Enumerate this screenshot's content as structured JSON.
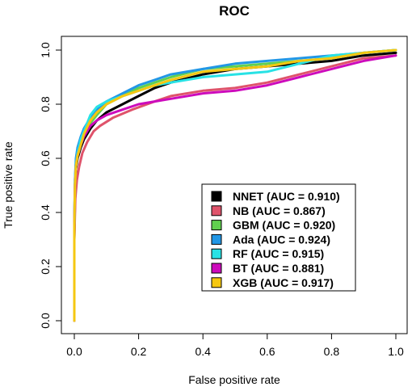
{
  "chart_data": {
    "type": "line",
    "title": "ROC",
    "xlabel": "False positive rate",
    "ylabel": "True positive rate",
    "xlim": [
      0.0,
      1.0
    ],
    "ylim": [
      0.0,
      1.0
    ],
    "xticks": [
      "0.0",
      "0.2",
      "0.4",
      "0.6",
      "0.8",
      "1.0"
    ],
    "yticks": [
      "0.0",
      "0.2",
      "0.4",
      "0.6",
      "0.8",
      "1.0"
    ],
    "grid": false,
    "legend_position": "bottom-right",
    "series": [
      {
        "name": "NNET (AUC = 0.910)",
        "color": "#000000",
        "points": [
          [
            0,
            0
          ],
          [
            0,
            0.3
          ],
          [
            0.002,
            0.45
          ],
          [
            0.005,
            0.56
          ],
          [
            0.01,
            0.6
          ],
          [
            0.02,
            0.64
          ],
          [
            0.03,
            0.67
          ],
          [
            0.05,
            0.71
          ],
          [
            0.07,
            0.74
          ],
          [
            0.1,
            0.77
          ],
          [
            0.15,
            0.8
          ],
          [
            0.2,
            0.83
          ],
          [
            0.25,
            0.86
          ],
          [
            0.3,
            0.88
          ],
          [
            0.4,
            0.91
          ],
          [
            0.5,
            0.93
          ],
          [
            0.6,
            0.94
          ],
          [
            0.7,
            0.95
          ],
          [
            0.8,
            0.96
          ],
          [
            0.9,
            0.98
          ],
          [
            1,
            0.99
          ]
        ]
      },
      {
        "name": "NB (AUC = 0.867)",
        "color": "#df536b",
        "points": [
          [
            0,
            0
          ],
          [
            0,
            0.3
          ],
          [
            0.003,
            0.45
          ],
          [
            0.008,
            0.52
          ],
          [
            0.015,
            0.57
          ],
          [
            0.025,
            0.62
          ],
          [
            0.04,
            0.66
          ],
          [
            0.06,
            0.7
          ],
          [
            0.08,
            0.72
          ],
          [
            0.12,
            0.75
          ],
          [
            0.18,
            0.78
          ],
          [
            0.25,
            0.81
          ],
          [
            0.3,
            0.83
          ],
          [
            0.4,
            0.85
          ],
          [
            0.5,
            0.86
          ],
          [
            0.6,
            0.88
          ],
          [
            0.7,
            0.91
          ],
          [
            0.8,
            0.94
          ],
          [
            0.9,
            0.97
          ],
          [
            1,
            0.98
          ]
        ]
      },
      {
        "name": "GBM (AUC = 0.920)",
        "color": "#61d04f",
        "points": [
          [
            0,
            0
          ],
          [
            0,
            0.35
          ],
          [
            0.002,
            0.5
          ],
          [
            0.005,
            0.58
          ],
          [
            0.01,
            0.62
          ],
          [
            0.02,
            0.66
          ],
          [
            0.03,
            0.69
          ],
          [
            0.05,
            0.73
          ],
          [
            0.07,
            0.76
          ],
          [
            0.1,
            0.8
          ],
          [
            0.15,
            0.83
          ],
          [
            0.2,
            0.86
          ],
          [
            0.25,
            0.88
          ],
          [
            0.3,
            0.9
          ],
          [
            0.4,
            0.93
          ],
          [
            0.5,
            0.94
          ],
          [
            0.6,
            0.95
          ],
          [
            0.7,
            0.96
          ],
          [
            0.8,
            0.97
          ],
          [
            0.9,
            0.99
          ],
          [
            1,
            1
          ]
        ]
      },
      {
        "name": "Ada (AUC = 0.924)",
        "color": "#2297e6",
        "points": [
          [
            0,
            0
          ],
          [
            0,
            0.35
          ],
          [
            0.002,
            0.52
          ],
          [
            0.005,
            0.6
          ],
          [
            0.01,
            0.64
          ],
          [
            0.02,
            0.68
          ],
          [
            0.03,
            0.71
          ],
          [
            0.05,
            0.75
          ],
          [
            0.07,
            0.78
          ],
          [
            0.1,
            0.81
          ],
          [
            0.15,
            0.84
          ],
          [
            0.2,
            0.87
          ],
          [
            0.25,
            0.89
          ],
          [
            0.3,
            0.91
          ],
          [
            0.4,
            0.93
          ],
          [
            0.5,
            0.95
          ],
          [
            0.6,
            0.96
          ],
          [
            0.7,
            0.97
          ],
          [
            0.8,
            0.98
          ],
          [
            0.9,
            0.99
          ],
          [
            1,
            1
          ]
        ]
      },
      {
        "name": "RF (AUC = 0.915)",
        "color": "#28e2e5",
        "points": [
          [
            0,
            0
          ],
          [
            0,
            0.35
          ],
          [
            0.002,
            0.52
          ],
          [
            0.005,
            0.58
          ],
          [
            0.01,
            0.62
          ],
          [
            0.02,
            0.67
          ],
          [
            0.03,
            0.7
          ],
          [
            0.05,
            0.76
          ],
          [
            0.07,
            0.79
          ],
          [
            0.1,
            0.81
          ],
          [
            0.15,
            0.83
          ],
          [
            0.2,
            0.85
          ],
          [
            0.25,
            0.87
          ],
          [
            0.3,
            0.88
          ],
          [
            0.4,
            0.9
          ],
          [
            0.5,
            0.91
          ],
          [
            0.6,
            0.92
          ],
          [
            0.7,
            0.95
          ],
          [
            0.8,
            0.98
          ],
          [
            0.9,
            0.99
          ],
          [
            1,
            1
          ]
        ]
      },
      {
        "name": "BT (AUC = 0.881)",
        "color": "#cd0bbc",
        "points": [
          [
            0,
            0
          ],
          [
            0,
            0.35
          ],
          [
            0.002,
            0.5
          ],
          [
            0.005,
            0.57
          ],
          [
            0.01,
            0.61
          ],
          [
            0.02,
            0.65
          ],
          [
            0.03,
            0.68
          ],
          [
            0.05,
            0.72
          ],
          [
            0.07,
            0.74
          ],
          [
            0.1,
            0.76
          ],
          [
            0.15,
            0.78
          ],
          [
            0.2,
            0.8
          ],
          [
            0.25,
            0.81
          ],
          [
            0.3,
            0.82
          ],
          [
            0.4,
            0.84
          ],
          [
            0.5,
            0.85
          ],
          [
            0.6,
            0.87
          ],
          [
            0.7,
            0.9
          ],
          [
            0.8,
            0.93
          ],
          [
            0.9,
            0.96
          ],
          [
            1,
            0.98
          ]
        ]
      },
      {
        "name": "XGB (AUC = 0.917)",
        "color": "#f5c710",
        "points": [
          [
            0,
            0
          ],
          [
            0,
            0.35
          ],
          [
            0.002,
            0.5
          ],
          [
            0.005,
            0.57
          ],
          [
            0.01,
            0.61
          ],
          [
            0.02,
            0.65
          ],
          [
            0.03,
            0.69
          ],
          [
            0.05,
            0.74
          ],
          [
            0.07,
            0.77
          ],
          [
            0.1,
            0.8
          ],
          [
            0.15,
            0.83
          ],
          [
            0.2,
            0.85
          ],
          [
            0.25,
            0.87
          ],
          [
            0.3,
            0.89
          ],
          [
            0.4,
            0.92
          ],
          [
            0.5,
            0.93
          ],
          [
            0.6,
            0.94
          ],
          [
            0.7,
            0.96
          ],
          [
            0.8,
            0.97
          ],
          [
            0.9,
            0.99
          ],
          [
            1,
            1
          ]
        ]
      }
    ]
  }
}
